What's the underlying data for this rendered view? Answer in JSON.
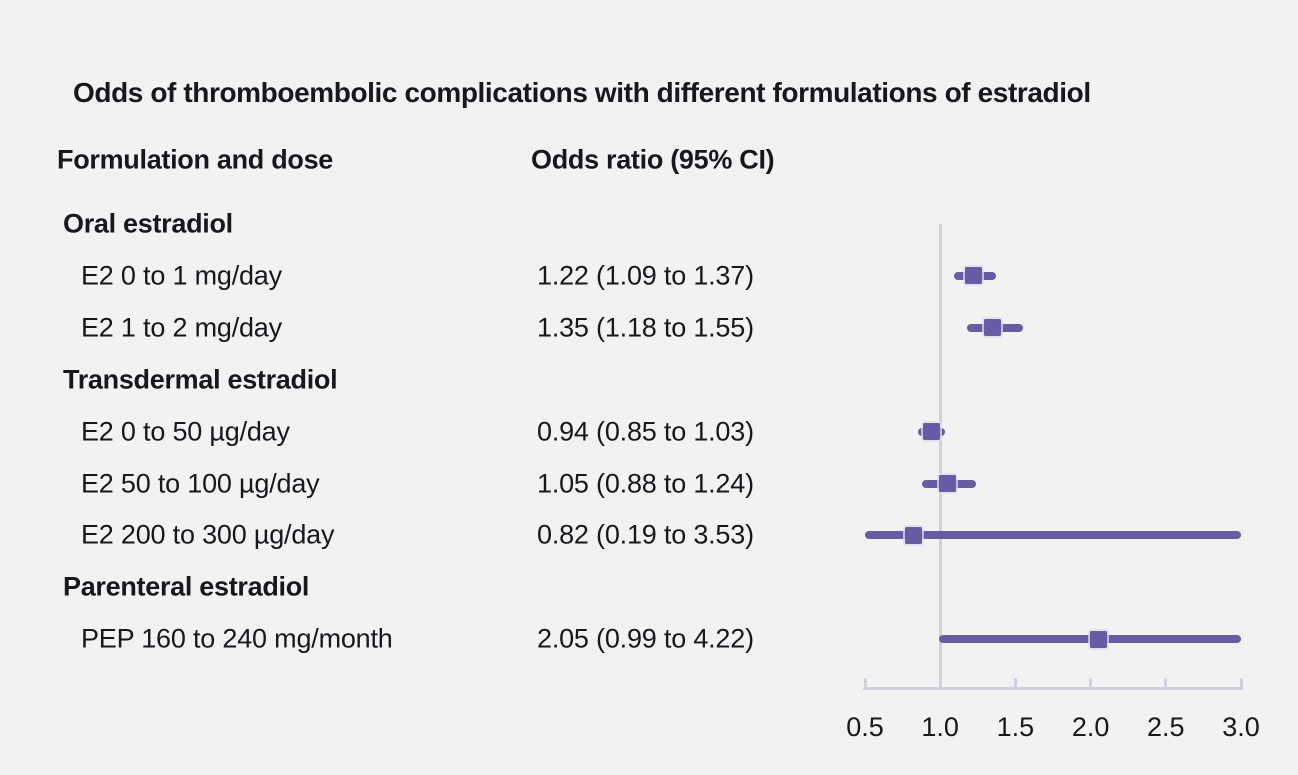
{
  "title": "Odds of thromboembolic complications with different formulations of estradiol",
  "columns": {
    "formulation": "Formulation and dose",
    "odds_ratio": "Odds ratio (95% CI)"
  },
  "chart_data": {
    "type": "forest",
    "title": "Odds of thromboembolic complications with different formulations of estradiol",
    "xlabel": "Odds ratio",
    "axis": {
      "min": 0.5,
      "max": 3.0,
      "ticks": [
        0.5,
        1.0,
        1.5,
        2.0,
        2.5,
        3.0
      ],
      "tick_labels": [
        "0.5",
        "1.0",
        "1.5",
        "2.0",
        "2.5",
        "3.0"
      ],
      "reference_line": 1.0,
      "note": "confidence intervals extending beyond 0.5 or 3.0 are clipped to the axis range"
    },
    "rows": [
      {
        "kind": "group",
        "label": "Oral estradiol"
      },
      {
        "kind": "item",
        "label": "E2 0 to 1 mg/day",
        "or_text": "1.22 (1.09 to 1.37)",
        "est": 1.22,
        "lo": 1.09,
        "hi": 1.37
      },
      {
        "kind": "item",
        "label": "E2 1 to 2 mg/day",
        "or_text": "1.35 (1.18 to 1.55)",
        "est": 1.35,
        "lo": 1.18,
        "hi": 1.55
      },
      {
        "kind": "group",
        "label": "Transdermal estradiol"
      },
      {
        "kind": "item",
        "label": "E2 0 to 50 µg/day",
        "or_text": "0.94 (0.85 to 1.03)",
        "est": 0.94,
        "lo": 0.85,
        "hi": 1.03
      },
      {
        "kind": "item",
        "label": "E2 50 to 100 µg/day",
        "or_text": "1.05 (0.88 to 1.24)",
        "est": 1.05,
        "lo": 0.88,
        "hi": 1.24
      },
      {
        "kind": "item",
        "label": "E2 200 to 300 µg/day",
        "or_text": "0.82 (0.19 to 3.53)",
        "est": 0.82,
        "lo": 0.19,
        "hi": 3.53
      },
      {
        "kind": "group",
        "label": "Parenteral estradiol"
      },
      {
        "kind": "item",
        "label": "PEP 160 to 240 mg/month",
        "or_text": "2.05 (0.99 to 4.22)",
        "est": 2.05,
        "lo": 0.99,
        "hi": 4.22
      }
    ],
    "colors": {
      "marker": "#695aa6",
      "ci_line": "#695aa6",
      "axis": "#ccd1dc",
      "reference": "#ccd1dc",
      "background": "#f2f2f2",
      "text": "#17171d"
    }
  }
}
